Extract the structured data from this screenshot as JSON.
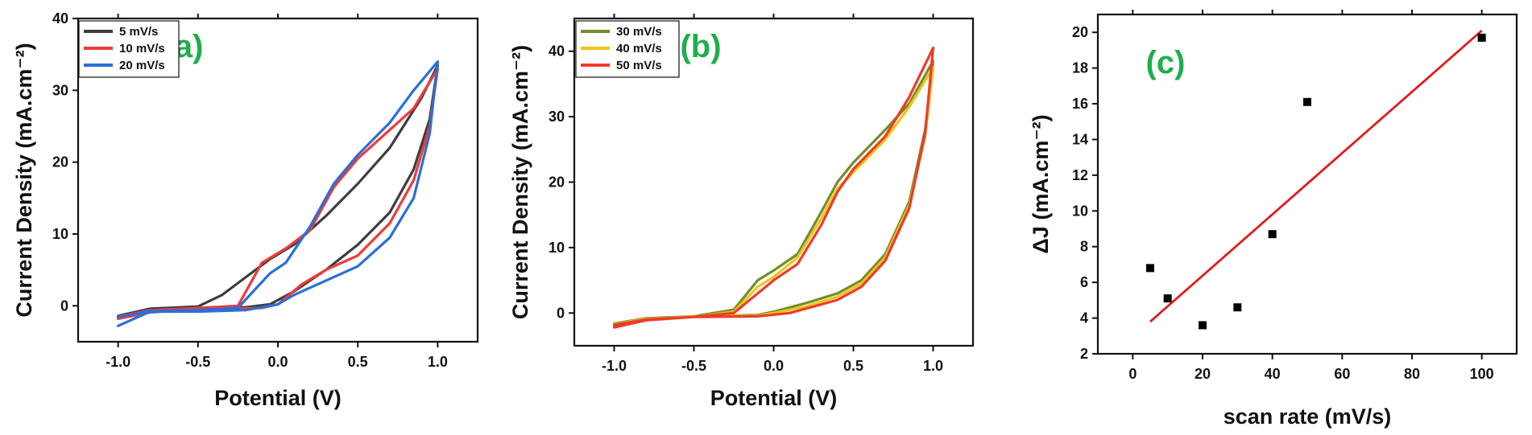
{
  "chart_data": [
    {
      "panel": "(a)",
      "type": "line",
      "xlabel": "Potential (V)",
      "ylabel": "Current Density (mA.cm⁻²)",
      "xlim": [
        -1.25,
        1.25
      ],
      "ylim": [
        -5,
        40
      ],
      "xticks": [
        -1.0,
        -0.5,
        0.0,
        0.5,
        1.0
      ],
      "xtick_labels": [
        "-1.0",
        "-0.5",
        "0.0",
        "0.5",
        "1.0"
      ],
      "yticks": [
        0,
        10,
        20,
        30,
        40
      ],
      "ytick_labels": [
        "0",
        "10",
        "20",
        "30",
        "40"
      ],
      "legend_position": "top-left",
      "series": [
        {
          "name": "5 mV/s",
          "color": "#3d3d3d",
          "forward": [
            [
              -1.0,
              -1.6
            ],
            [
              -0.8,
              -0.9
            ],
            [
              -0.5,
              -0.4
            ],
            [
              -0.2,
              -0.2
            ],
            [
              -0.05,
              0.2
            ],
            [
              0.1,
              2.0
            ],
            [
              0.3,
              5.0
            ],
            [
              0.5,
              8.5
            ],
            [
              0.7,
              13.0
            ],
            [
              0.85,
              19.0
            ],
            [
              0.95,
              26.0
            ],
            [
              1.0,
              33.5
            ]
          ],
          "reverse": [
            [
              1.0,
              33.5
            ],
            [
              0.9,
              29.0
            ],
            [
              0.7,
              22.0
            ],
            [
              0.5,
              17.0
            ],
            [
              0.3,
              12.5
            ],
            [
              0.1,
              8.5
            ],
            [
              -0.05,
              6.5
            ],
            [
              -0.2,
              4.0
            ],
            [
              -0.35,
              1.5
            ],
            [
              -0.5,
              -0.1
            ],
            [
              -0.8,
              -0.4
            ],
            [
              -1.0,
              -1.4
            ]
          ]
        },
        {
          "name": "10 mV/s",
          "color": "#ee3b3b",
          "forward": [
            [
              -1.0,
              -1.8
            ],
            [
              -0.8,
              -0.9
            ],
            [
              -0.5,
              -0.5
            ],
            [
              -0.1,
              -0.3
            ],
            [
              0.0,
              0.2
            ],
            [
              0.15,
              3.0
            ],
            [
              0.3,
              5.0
            ],
            [
              0.5,
              7.0
            ],
            [
              0.7,
              11.5
            ],
            [
              0.85,
              17.5
            ],
            [
              0.95,
              25.0
            ],
            [
              1.0,
              33.0
            ]
          ],
          "reverse": [
            [
              1.0,
              33.0
            ],
            [
              0.85,
              27.5
            ],
            [
              0.7,
              24.5
            ],
            [
              0.5,
              20.5
            ],
            [
              0.35,
              16.5
            ],
            [
              0.2,
              10.5
            ],
            [
              0.05,
              8.0
            ],
            [
              -0.1,
              6.0
            ],
            [
              -0.25,
              0.0
            ],
            [
              -0.5,
              -0.3
            ],
            [
              -0.8,
              -0.6
            ],
            [
              -1.0,
              -1.5
            ]
          ]
        },
        {
          "name": "20 mV/s",
          "color": "#2a6fd8",
          "forward": [
            [
              -1.0,
              -2.8
            ],
            [
              -0.8,
              -0.8
            ],
            [
              -0.5,
              -0.8
            ],
            [
              -0.2,
              -0.6
            ],
            [
              0.0,
              0.2
            ],
            [
              0.1,
              1.5
            ],
            [
              0.3,
              3.5
            ],
            [
              0.5,
              5.5
            ],
            [
              0.7,
              9.5
            ],
            [
              0.85,
              15.0
            ],
            [
              0.95,
              24.0
            ],
            [
              1.0,
              34.0
            ]
          ],
          "reverse": [
            [
              1.0,
              36.0
            ],
            [
              0.85,
              30.0
            ],
            [
              0.7,
              25.5
            ],
            [
              0.5,
              21.0
            ],
            [
              0.35,
              17.0
            ],
            [
              0.2,
              11.0
            ],
            [
              0.05,
              6.0
            ],
            [
              -0.05,
              4.5
            ],
            [
              -0.25,
              -0.3
            ],
            [
              -0.5,
              -0.6
            ],
            [
              -0.8,
              -0.7
            ],
            [
              -1.0,
              -1.6
            ]
          ]
        }
      ]
    },
    {
      "panel": "(b)",
      "type": "line",
      "xlabel": "Potential (V)",
      "ylabel": "Current Density (mA.cm⁻²)",
      "xlim": [
        -1.25,
        1.25
      ],
      "ylim": [
        -5,
        45
      ],
      "xticks": [
        -1.0,
        -0.5,
        0.0,
        0.5,
        1.0
      ],
      "xtick_labels": [
        "-1.0",
        "-0.5",
        "0.0",
        "0.5",
        "1.0"
      ],
      "yticks": [
        0,
        10,
        20,
        30,
        40
      ],
      "ytick_labels": [
        "0",
        "10",
        "20",
        "30",
        "40"
      ],
      "legend_position": "top-left",
      "series": [
        {
          "name": "30 mV/s",
          "color": "#6f8f2a",
          "forward": [
            [
              -1.0,
              -1.8
            ],
            [
              -0.8,
              -1.0
            ],
            [
              -0.5,
              -0.5
            ],
            [
              -0.1,
              -0.3
            ],
            [
              0.0,
              0.2
            ],
            [
              0.2,
              1.5
            ],
            [
              0.4,
              3.0
            ],
            [
              0.55,
              5.0
            ],
            [
              0.7,
              9.0
            ],
            [
              0.85,
              17.0
            ],
            [
              0.95,
              28.0
            ],
            [
              1.0,
              38.5
            ]
          ],
          "reverse": [
            [
              1.0,
              39.5
            ],
            [
              0.85,
              32.0
            ],
            [
              0.7,
              28.0
            ],
            [
              0.5,
              23.0
            ],
            [
              0.4,
              20.0
            ],
            [
              0.3,
              15.5
            ],
            [
              0.15,
              9.0
            ],
            [
              0.0,
              6.5
            ],
            [
              -0.1,
              5.0
            ],
            [
              -0.25,
              0.5
            ],
            [
              -0.5,
              -0.5
            ],
            [
              -0.8,
              -0.8
            ],
            [
              -1.0,
              -1.6
            ]
          ]
        },
        {
          "name": "40 mV/s",
          "color": "#f0c419",
          "forward": [
            [
              -1.0,
              -2.0
            ],
            [
              -0.8,
              -1.0
            ],
            [
              -0.5,
              -0.5
            ],
            [
              -0.1,
              -0.4
            ],
            [
              0.0,
              0.0
            ],
            [
              0.2,
              1.0
            ],
            [
              0.4,
              2.5
            ],
            [
              0.55,
              4.5
            ],
            [
              0.7,
              8.5
            ],
            [
              0.85,
              16.5
            ],
            [
              0.95,
              27.0
            ],
            [
              1.0,
              37.5
            ]
          ],
          "reverse": [
            [
              1.0,
              38.0
            ],
            [
              0.85,
              31.5
            ],
            [
              0.7,
              26.5
            ],
            [
              0.5,
              21.5
            ],
            [
              0.4,
              19.0
            ],
            [
              0.3,
              14.5
            ],
            [
              0.15,
              8.5
            ],
            [
              0.0,
              5.5
            ],
            [
              -0.1,
              4.0
            ],
            [
              -0.25,
              0.2
            ],
            [
              -0.5,
              -0.6
            ],
            [
              -0.8,
              -0.9
            ],
            [
              -1.0,
              -1.7
            ]
          ]
        },
        {
          "name": "50 mV/s",
          "color": "#ee3b2a",
          "forward": [
            [
              -1.0,
              -2.2
            ],
            [
              -0.8,
              -1.1
            ],
            [
              -0.5,
              -0.6
            ],
            [
              -0.1,
              -0.5
            ],
            [
              0.1,
              0.0
            ],
            [
              0.25,
              1.0
            ],
            [
              0.4,
              2.0
            ],
            [
              0.55,
              4.0
            ],
            [
              0.7,
              8.0
            ],
            [
              0.85,
              16.0
            ],
            [
              0.95,
              27.5
            ],
            [
              1.0,
              40.5
            ]
          ],
          "reverse": [
            [
              1.0,
              40.5
            ],
            [
              0.85,
              33.0
            ],
            [
              0.7,
              27.0
            ],
            [
              0.5,
              22.0
            ],
            [
              0.4,
              18.5
            ],
            [
              0.3,
              13.5
            ],
            [
              0.15,
              7.5
            ],
            [
              0.0,
              5.0
            ],
            [
              -0.1,
              3.0
            ],
            [
              -0.25,
              0.0
            ],
            [
              -0.5,
              -0.6
            ],
            [
              -0.8,
              -1.0
            ],
            [
              -1.0,
              -1.8
            ]
          ]
        }
      ]
    },
    {
      "panel": "(c)",
      "type": "scatter",
      "xlabel": "scan rate (mV/s)",
      "ylabel": "ΔJ (mA.cm⁻²)",
      "xlim": [
        -10,
        110
      ],
      "ylim": [
        2,
        21
      ],
      "xticks": [
        0,
        20,
        40,
        60,
        80,
        100
      ],
      "xtick_labels": [
        "0",
        "20",
        "40",
        "60",
        "80",
        "100"
      ],
      "yticks": [
        2,
        4,
        6,
        8,
        10,
        12,
        14,
        16,
        18,
        20
      ],
      "ytick_labels": [
        "2",
        "4",
        "6",
        "8",
        "10",
        "12",
        "14",
        "16",
        "18",
        "20"
      ],
      "points": [
        {
          "x": 5,
          "y": 6.8
        },
        {
          "x": 10,
          "y": 5.1
        },
        {
          "x": 20,
          "y": 3.6
        },
        {
          "x": 30,
          "y": 4.6
        },
        {
          "x": 40,
          "y": 8.7
        },
        {
          "x": 50,
          "y": 16.1
        },
        {
          "x": 100,
          "y": 19.7
        }
      ],
      "point_color": "#000000",
      "fit_line": {
        "color": "#e31a1c",
        "x": [
          5,
          100
        ],
        "y": [
          3.8,
          20.1
        ]
      }
    }
  ]
}
